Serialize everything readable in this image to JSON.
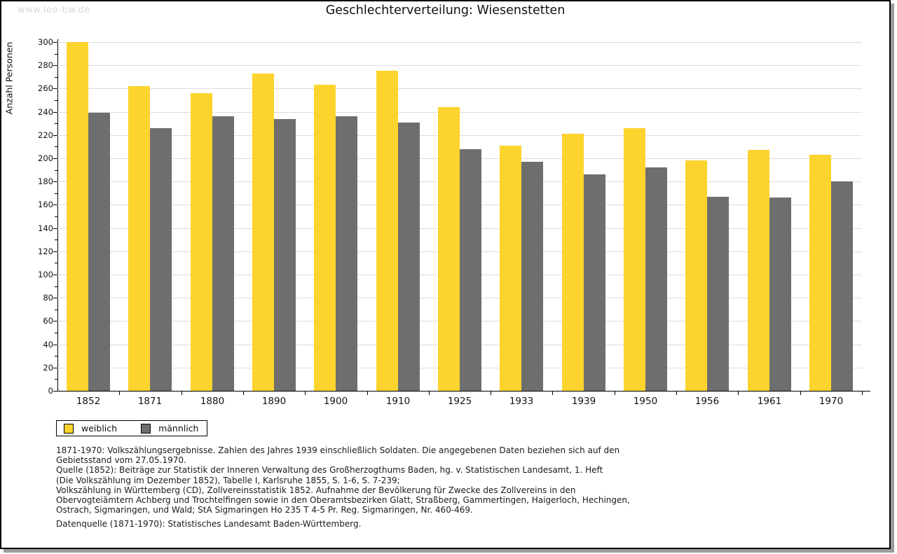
{
  "watermark": "www.leo-bw.de",
  "title": "Geschlechterverteilung: Wiesenstetten",
  "chart_data": {
    "type": "bar",
    "title": "Geschlechterverteilung: Wiesenstetten",
    "xlabel": "",
    "ylabel": "Anzahl Personen",
    "categories": [
      "1852",
      "1871",
      "1880",
      "1890",
      "1900",
      "1910",
      "1925",
      "1933",
      "1939",
      "1950",
      "1956",
      "1961",
      "1970"
    ],
    "series": [
      {
        "name": "weiblich",
        "color": "#FCD42D",
        "values": [
          300,
          262,
          256,
          273,
          263,
          275,
          244,
          211,
          221,
          226,
          198,
          207,
          203
        ]
      },
      {
        "name": "männlich",
        "color": "#6E6E6E",
        "values": [
          239,
          226,
          236,
          234,
          236,
          231,
          208,
          197,
          186,
          192,
          167,
          166,
          180
        ]
      }
    ],
    "ylim": [
      0,
      300
    ],
    "y_major_step": 20,
    "y_minor_step": 10,
    "grid": true,
    "legend_position": "bottom-left"
  },
  "footer": {
    "lines": [
      "1871-1970: Volkszählungsergebnisse. Zahlen des Jahres 1939 einschließlich Soldaten. Die angegebenen Daten beziehen sich auf den",
      "Gebietsstand vom 27.05.1970.",
      "Quelle (1852): Beiträge zur Statistik der Inneren Verwaltung des Großherzogthums Baden, hg. v. Statistischen Landesamt, 1. Heft",
      "(Die Volkszählung im Dezember 1852), Tabelle I, Karlsruhe 1855, S. 1-6, S. 7-239;",
      "Volkszählung in Württemberg (CD), Zollvereinsstatistik 1852. Aufnahme der Bevölkerung für Zwecke des Zollvereins in den",
      "Obervogteiämtern Achberg und Trochtelfingen sowie in den Oberamtsbezirken Glatt, Straßberg, Gammertingen, Haigerloch, Hechingen,",
      "Ostrach, Sigmaringen, und Wald; StA Sigmaringen Ho 235 T 4-5 Pr. Reg. Sigmaringen, Nr. 460-469."
    ],
    "source_line": "Datenquelle (1871-1970): Statistisches Landesamt Baden-Württemberg."
  },
  "colors": {
    "bar_weiblich": "#FCD42D",
    "bar_männlich": "#6E6E6E",
    "gridline": "#dcdcdc",
    "axis": "#000000",
    "watermark": "#d9d9d9",
    "frame_shadow": "#9c9c9c"
  }
}
